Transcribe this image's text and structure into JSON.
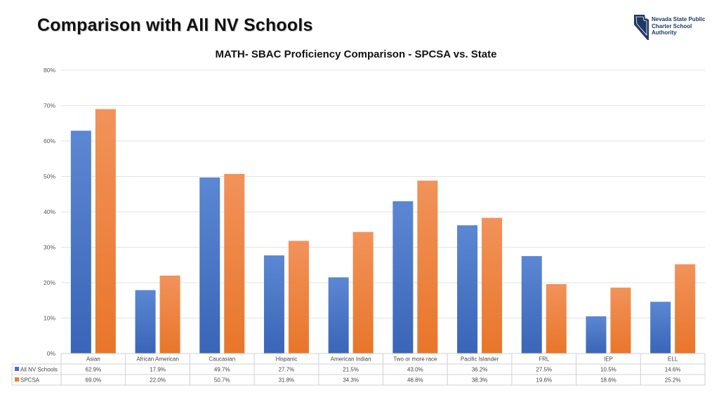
{
  "slide": {
    "title": "Comparison with All NV Schools",
    "logo_lines": [
      "Nevada State Public",
      "Charter School",
      "Authority"
    ]
  },
  "colors": {
    "state": "#4472c4",
    "spcsa": "#ed7d31",
    "logo": "#1f3864"
  },
  "chart_data": {
    "type": "bar",
    "title": "MATH- SBAC Proficiency Comparison - SPCSA vs. State",
    "categories": [
      "Asian",
      "African American",
      "Caucasian",
      "Hispanic",
      "American Indian",
      "Two or more race",
      "Pacific Islander",
      "FRL",
      "IEP",
      "ELL"
    ],
    "series": [
      {
        "name": "All NV Schools",
        "values": [
          62.9,
          17.9,
          49.7,
          27.7,
          21.5,
          43.0,
          36.2,
          27.5,
          10.5,
          14.6
        ],
        "labels": [
          "62.9%",
          "17.9%",
          "49.7%",
          "27.7%",
          "21.5%",
          "43.0%",
          "36.2%",
          "27.5%",
          "10.5%",
          "14.6%"
        ]
      },
      {
        "name": "SPCSA",
        "values": [
          69.0,
          22.0,
          50.7,
          31.8,
          34.3,
          48.8,
          38.3,
          19.6,
          18.6,
          25.2
        ],
        "labels": [
          "69.0%",
          "22.0%",
          "50.7%",
          "31.8%",
          "34.3%",
          "48.8%",
          "38.3%",
          "19.6%",
          "18.6%",
          "25.2%"
        ]
      }
    ],
    "ylim": [
      0,
      80
    ],
    "yticks": [
      "0%",
      "10%",
      "20%",
      "30%",
      "40%",
      "50%",
      "60%",
      "70%",
      "80%"
    ],
    "grid": true,
    "legend": "data-table"
  }
}
